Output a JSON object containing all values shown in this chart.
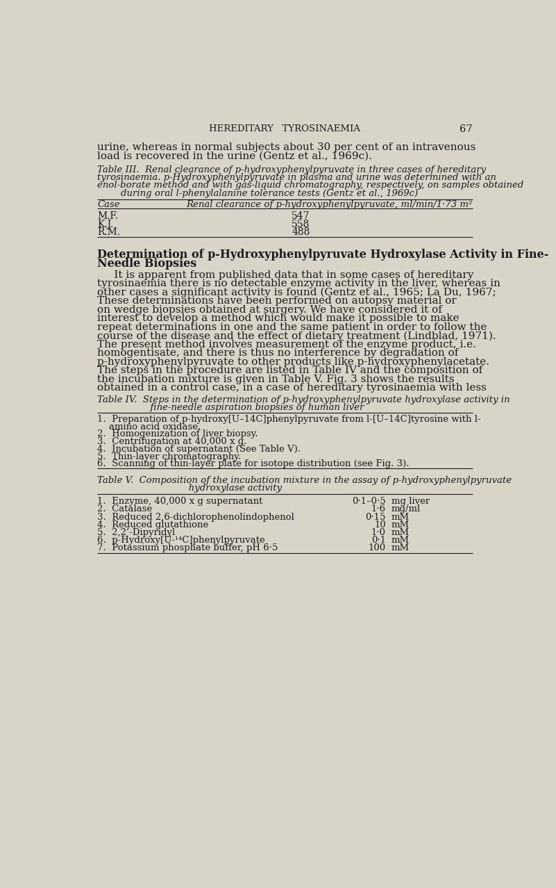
{
  "bg_color": "#d8d4c8",
  "text_color": "#1a1a1a",
  "page_title": "HEREDITARY   TYROSINAEMIA",
  "page_number": "67",
  "intro_lines": [
    "urine, whereas in normal subjects about 30 per cent of an intravenous",
    "load is recovered in the urine (Gentz et al., 1969c)."
  ],
  "table3_cap_lines": [
    "Table III.  Renal clearance of p-hydroxyphenylpyruvate in three cases of hereditary",
    "tyrosinaemia. p-Hydroxyphenylpyruvate in plasma and urine was determined with an",
    "enol-borate method and with gas-liquid chromatography, respectively, on samples obtained",
    "        during oral l-phenylalanine tolerance tests (Gentz et al., 1969c)"
  ],
  "table3_col1_header": "Case",
  "table3_col2_header": "Renal clearance of p-hydroxyphenylpyruvate, ml/min/1·73 m²",
  "table3_rows": [
    [
      "M.F.",
      "547"
    ],
    [
      "K.J.",
      "558"
    ],
    [
      "R.M.",
      "488"
    ]
  ],
  "section_heading_lines": [
    "Determination of p-Hydroxyphenylpyruvate Hydroxylase Activity in Fine-",
    "Needle Biopsies"
  ],
  "body_lines": [
    "     It is apparent from published data that in some cases of hereditary",
    "tyrosinaemia there is no detectable enzyme activity in the liver, whereas in",
    "other cases a significant activity is found (Gentz et al., 1965; La Du, 1967;",
    "These determinations have been performed on autopsy material or",
    "on wedge biopsies obtained at surgery. We have considered it of",
    "interest to develop a method which would make it possible to make",
    "repeat determinations in one and the same patient in order to follow the",
    "course of the disease and the effect of dietary treatment (Lindblad, 1971).",
    "The present method involves measurement of the enzyme product, i.e.",
    "homogentisate, and there is thus no interference by degradation of",
    "p-hydroxyphenylpyruvate to other products like p-hydroxyphenylacetate.",
    "The steps in the procedure are listed in Table IV and the composition of",
    "the incubation mixture is given in Table V. Fig. 3 shows the results",
    "obtained in a control case, in a case of hereditary tyrosinaemia with less"
  ],
  "table4_cap_lines": [
    "Table IV.  Steps in the determination of p-hydroxyphenylpyruvate hydroxylase activity in",
    "                  fine-needle aspiration biopsies of human liver"
  ],
  "table4_item1_line1": "1.  Preparation of p-hydroxy[U–14C]phenylpyruvate from l-[U–14C]tyrosine with l-",
  "table4_item1_line2": "    amino acid oxidase.",
  "table4_items_rest": [
    "2.  Homogenization of liver biopsy.",
    "3.  Centrifugation at 40,000 x g.",
    "4.  Incubation of supernatant (See Table V).",
    "5.  Thin-layer chromatography.",
    "6.  Scanning of thin-layer plate for isotope distribution (see Fig. 3)."
  ],
  "table5_cap_lines": [
    "Table V.  Composition of the incubation mixture in the assay of p-hydroxyphenylpyruvate",
    "                               hydroxylase activity"
  ],
  "table5_rows": [
    [
      "1.  Enzyme, 40,000 x g supernatant",
      "0·1–0·5",
      "mg liver"
    ],
    [
      "2.  Catalase",
      "1·6",
      "mg/ml"
    ],
    [
      "3.  Reduced 2,6-dichlorophenolindophenol",
      "0·15",
      "mM"
    ],
    [
      "4.  Reduced glutathione",
      "10",
      "mM"
    ],
    [
      "5.  2,2’-Dipyridyl",
      "1·0",
      "mM"
    ],
    [
      "6.  p-Hydroxy[U-¹⁴C]phenylpyruvate",
      "0·1",
      "mM"
    ],
    [
      "7.  Potassium phosphate buffer, pH 6·5",
      "100",
      "mM"
    ]
  ]
}
